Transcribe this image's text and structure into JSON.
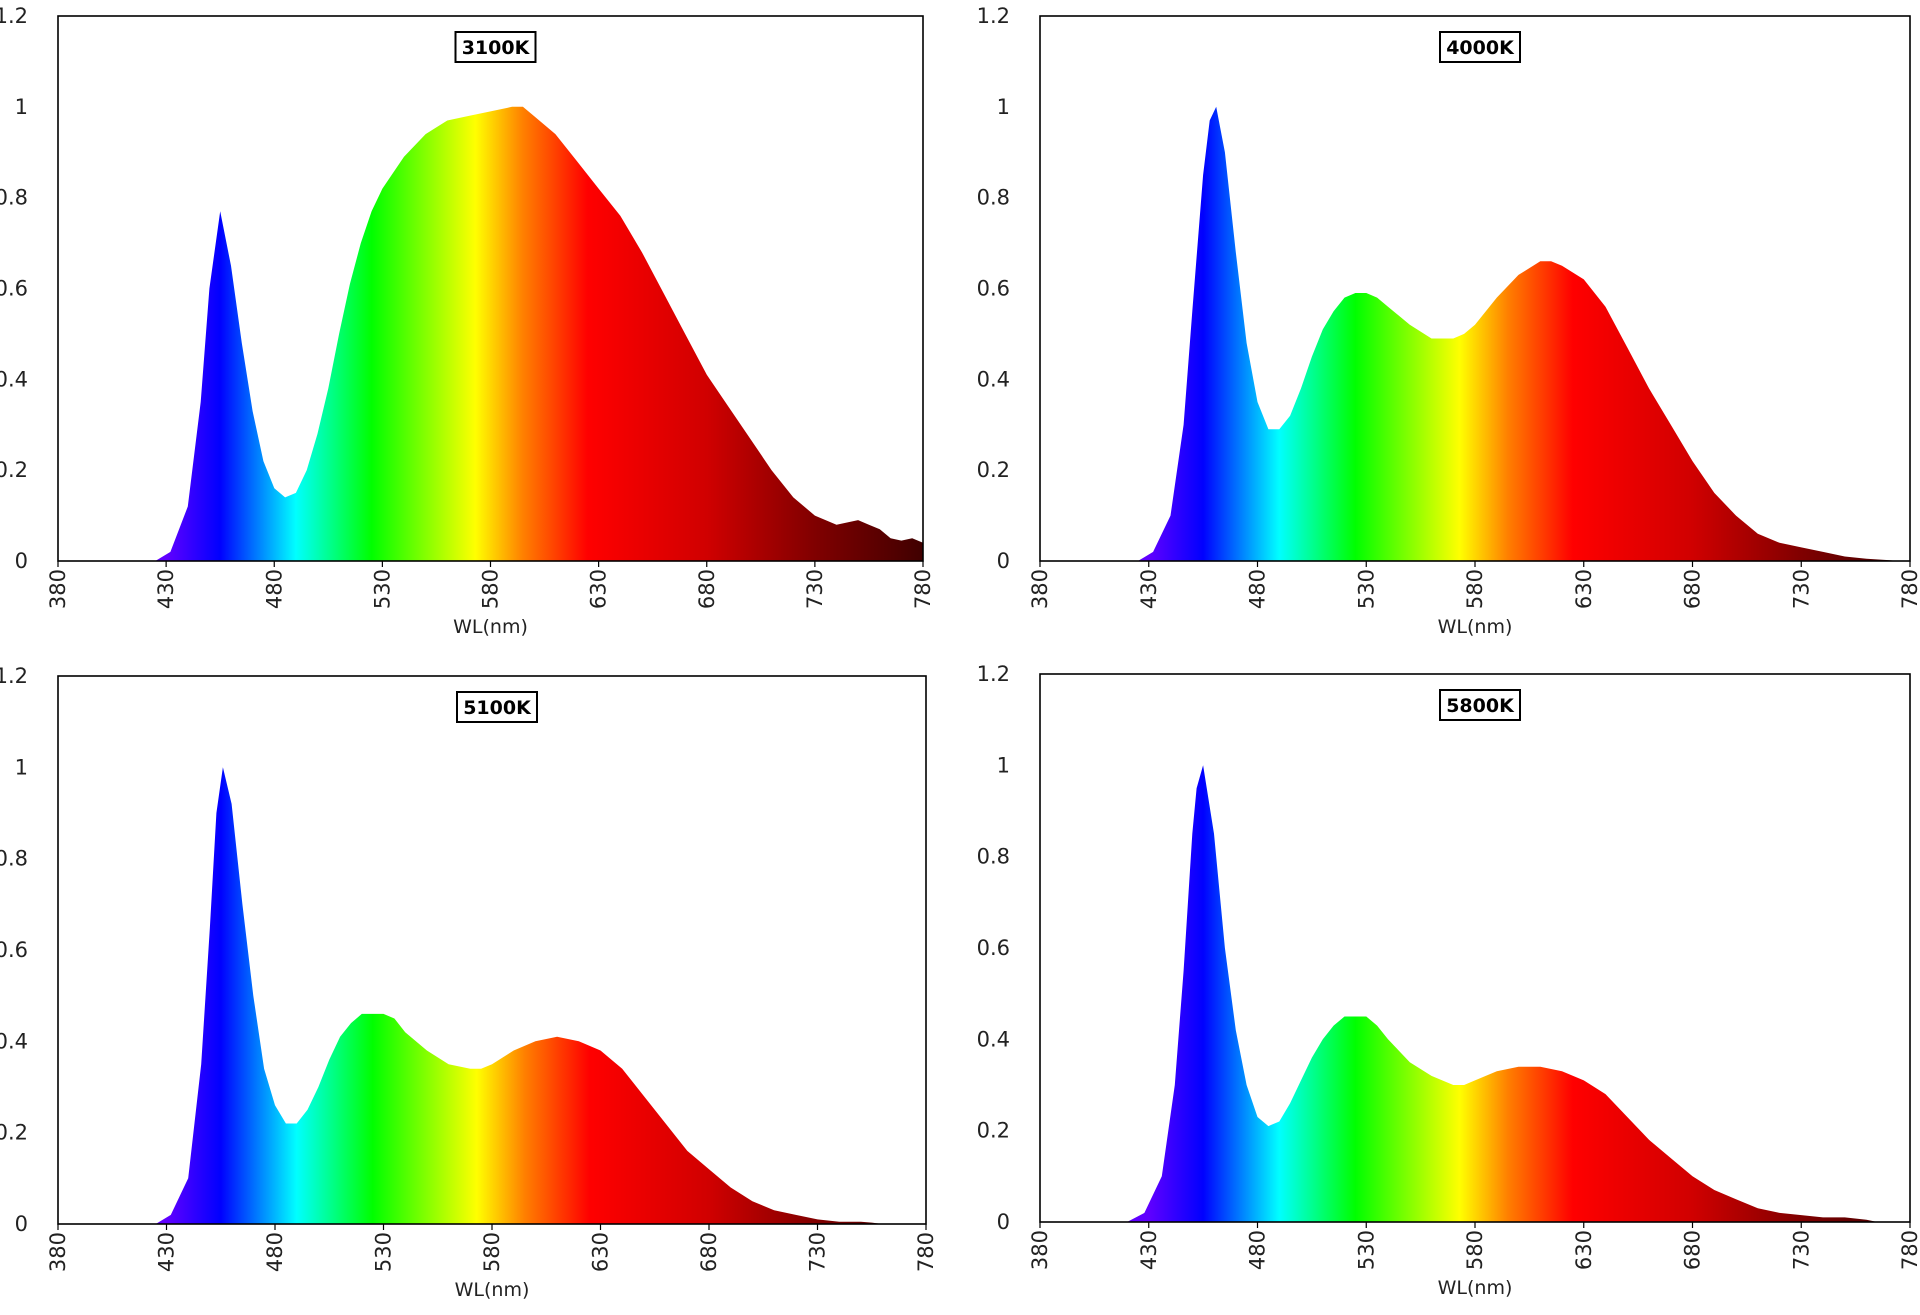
{
  "spectrum_colors": [
    "#6000ff",
    "#0000ff",
    "#00ffff",
    "#00ff00",
    "#ffff00",
    "#ff8000",
    "#ff0000",
    "#d00000",
    "#800000",
    "#400000"
  ],
  "chart_data": [
    {
      "type": "area",
      "title": "3100K",
      "xlabel": "WL(nm)",
      "ylabel": "",
      "xlim": [
        380,
        780
      ],
      "ylim": [
        0,
        1.2
      ],
      "xticks": [
        "380",
        "430",
        "480",
        "530",
        "580",
        "630",
        "680",
        "730",
        "780"
      ],
      "yticks": [
        "0",
        "0.2",
        "0.4",
        "0.6",
        "0.8",
        "1",
        "1.2"
      ],
      "grid": false,
      "x": [
        380,
        425,
        432,
        440,
        446,
        450,
        455,
        460,
        465,
        470,
        475,
        480,
        485,
        490,
        495,
        500,
        505,
        510,
        515,
        520,
        525,
        530,
        540,
        550,
        560,
        570,
        580,
        590,
        595,
        600,
        610,
        620,
        630,
        640,
        650,
        660,
        670,
        680,
        690,
        700,
        710,
        720,
        730,
        740,
        750,
        755,
        760,
        765,
        770,
        775,
        780
      ],
      "values": [
        0,
        0,
        0.02,
        0.12,
        0.35,
        0.6,
        0.77,
        0.65,
        0.48,
        0.33,
        0.22,
        0.16,
        0.14,
        0.15,
        0.2,
        0.28,
        0.38,
        0.5,
        0.61,
        0.7,
        0.77,
        0.82,
        0.89,
        0.94,
        0.97,
        0.98,
        0.99,
        1.0,
        1.0,
        0.98,
        0.94,
        0.88,
        0.82,
        0.76,
        0.68,
        0.59,
        0.5,
        0.41,
        0.34,
        0.27,
        0.2,
        0.14,
        0.1,
        0.08,
        0.09,
        0.08,
        0.07,
        0.05,
        0.045,
        0.05,
        0.04
      ]
    },
    {
      "type": "area",
      "title": "4000K",
      "xlabel": "WL(nm)",
      "ylabel": "",
      "xlim": [
        380,
        780
      ],
      "ylim": [
        0,
        1.2
      ],
      "xticks": [
        "380",
        "430",
        "480",
        "530",
        "580",
        "630",
        "680",
        "730",
        "780"
      ],
      "yticks": [
        "0",
        "0.2",
        "0.4",
        "0.6",
        "0.8",
        "1",
        "1.2"
      ],
      "grid": false,
      "x": [
        380,
        425,
        432,
        440,
        446,
        450,
        455,
        458,
        461,
        465,
        470,
        475,
        480,
        485,
        490,
        495,
        500,
        505,
        510,
        515,
        520,
        525,
        530,
        535,
        540,
        550,
        560,
        570,
        575,
        580,
        590,
        600,
        610,
        615,
        620,
        630,
        640,
        650,
        660,
        670,
        680,
        690,
        700,
        710,
        720,
        730,
        740,
        750,
        760,
        770,
        775,
        780
      ],
      "values": [
        0,
        0,
        0.02,
        0.1,
        0.3,
        0.55,
        0.85,
        0.97,
        1.0,
        0.9,
        0.68,
        0.48,
        0.35,
        0.29,
        0.29,
        0.32,
        0.38,
        0.45,
        0.51,
        0.55,
        0.58,
        0.59,
        0.59,
        0.58,
        0.56,
        0.52,
        0.49,
        0.49,
        0.5,
        0.52,
        0.58,
        0.63,
        0.66,
        0.66,
        0.65,
        0.62,
        0.56,
        0.47,
        0.38,
        0.3,
        0.22,
        0.15,
        0.1,
        0.06,
        0.04,
        0.03,
        0.02,
        0.01,
        0.005,
        0.002,
        0,
        0
      ]
    },
    {
      "type": "area",
      "title": "5100K",
      "xlabel": "WL(nm)",
      "ylabel": "",
      "xlim": [
        380,
        780
      ],
      "ylim": [
        0,
        1.2
      ],
      "xticks": [
        "380",
        "430",
        "480",
        "530",
        "580",
        "630",
        "680",
        "730",
        "780"
      ],
      "yticks": [
        "0",
        "0.2",
        "0.4",
        "0.6",
        "0.8",
        "1",
        "1.2"
      ],
      "grid": false,
      "x": [
        380,
        425,
        432,
        440,
        446,
        450,
        453,
        456,
        460,
        465,
        470,
        475,
        480,
        485,
        490,
        495,
        500,
        505,
        510,
        515,
        520,
        525,
        530,
        535,
        540,
        550,
        560,
        570,
        575,
        580,
        590,
        600,
        610,
        620,
        630,
        640,
        650,
        660,
        670,
        680,
        690,
        700,
        710,
        720,
        730,
        740,
        750,
        755,
        760,
        780
      ],
      "values": [
        0,
        0,
        0.02,
        0.1,
        0.35,
        0.65,
        0.9,
        1.0,
        0.92,
        0.7,
        0.5,
        0.34,
        0.26,
        0.22,
        0.22,
        0.25,
        0.3,
        0.36,
        0.41,
        0.44,
        0.46,
        0.46,
        0.46,
        0.45,
        0.42,
        0.38,
        0.35,
        0.34,
        0.34,
        0.35,
        0.38,
        0.4,
        0.41,
        0.4,
        0.38,
        0.34,
        0.28,
        0.22,
        0.16,
        0.12,
        0.08,
        0.05,
        0.03,
        0.02,
        0.01,
        0.005,
        0.005,
        0.003,
        0,
        0
      ]
    },
    {
      "type": "area",
      "title": "5800K",
      "xlabel": "WL(nm)",
      "ylabel": "",
      "xlim": [
        380,
        780
      ],
      "ylim": [
        0,
        1.2
      ],
      "xticks": [
        "380",
        "430",
        "480",
        "530",
        "580",
        "630",
        "680",
        "730",
        "780"
      ],
      "yticks": [
        "0",
        "0.2",
        "0.4",
        "0.6",
        "0.8",
        "1",
        "1.2"
      ],
      "grid": false,
      "x": [
        380,
        420,
        428,
        436,
        442,
        446,
        450,
        452,
        455,
        460,
        465,
        470,
        475,
        480,
        485,
        490,
        495,
        500,
        505,
        510,
        515,
        520,
        525,
        530,
        535,
        540,
        550,
        560,
        570,
        575,
        580,
        590,
        600,
        610,
        620,
        630,
        640,
        650,
        660,
        670,
        680,
        690,
        700,
        710,
        720,
        730,
        740,
        750,
        760,
        765,
        780
      ],
      "values": [
        0,
        0,
        0.02,
        0.1,
        0.3,
        0.55,
        0.85,
        0.95,
        1.0,
        0.85,
        0.6,
        0.42,
        0.3,
        0.23,
        0.21,
        0.22,
        0.26,
        0.31,
        0.36,
        0.4,
        0.43,
        0.45,
        0.45,
        0.45,
        0.43,
        0.4,
        0.35,
        0.32,
        0.3,
        0.3,
        0.31,
        0.33,
        0.34,
        0.34,
        0.33,
        0.31,
        0.28,
        0.23,
        0.18,
        0.14,
        0.1,
        0.07,
        0.05,
        0.03,
        0.02,
        0.015,
        0.01,
        0.01,
        0.005,
        0,
        0
      ]
    }
  ]
}
